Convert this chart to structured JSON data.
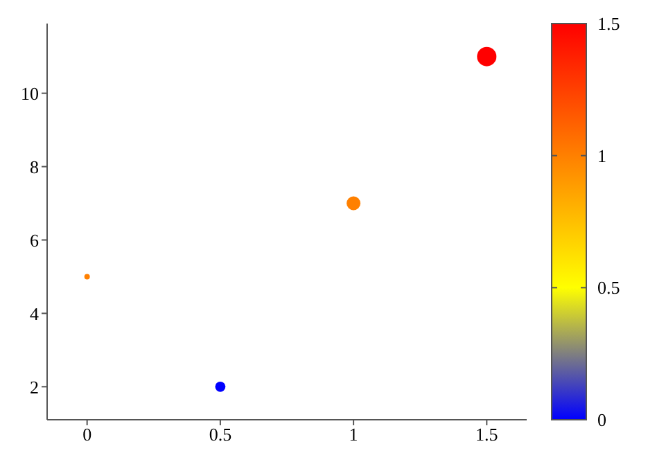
{
  "chart_data": {
    "type": "bubble",
    "x": [
      0,
      0.5,
      1,
      1.5
    ],
    "values": [
      5,
      2,
      7,
      11
    ],
    "sizes": [
      0.08,
      0.28,
      0.51,
      1
    ],
    "cvalues": [
      1,
      0,
      1,
      1.5
    ],
    "clim": [
      0,
      1.5
    ],
    "cticks": [
      0,
      0.5,
      1,
      1.5
    ],
    "xlim": [
      -0.15,
      1.65
    ],
    "xticks": [
      0,
      0.5,
      1,
      1.5
    ],
    "ylim": [
      1.1,
      11.9
    ],
    "yticks": [
      2,
      4,
      6,
      8,
      10
    ]
  }
}
